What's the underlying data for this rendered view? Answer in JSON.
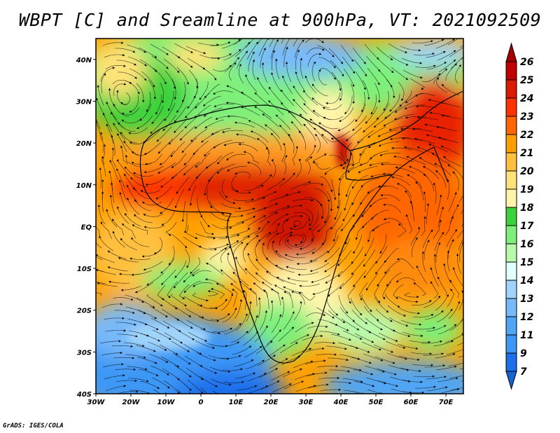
{
  "title": "WBPT [C] and Sreamline at 900hPa, VT: 2021092509",
  "credit": "GrADS: IGES/COLA",
  "map": {
    "lon_range": [
      -30,
      75
    ],
    "lat_range": [
      -40,
      45
    ],
    "lon_labels": [
      {
        "lon": -30,
        "text": "30W"
      },
      {
        "lon": -20,
        "text": "20W"
      },
      {
        "lon": -10,
        "text": "10W"
      },
      {
        "lon": 0,
        "text": "0"
      },
      {
        "lon": 10,
        "text": "10E"
      },
      {
        "lon": 20,
        "text": "20E"
      },
      {
        "lon": 30,
        "text": "30E"
      },
      {
        "lon": 40,
        "text": "40E"
      },
      {
        "lon": 50,
        "text": "50E"
      },
      {
        "lon": 60,
        "text": "60E"
      },
      {
        "lon": 70,
        "text": "70E"
      }
    ],
    "lat_labels": [
      {
        "lat": 40,
        "text": "40N"
      },
      {
        "lat": 30,
        "text": "30N"
      },
      {
        "lat": 20,
        "text": "20N"
      },
      {
        "lat": 10,
        "text": "10N"
      },
      {
        "lat": 0,
        "text": "EQ"
      },
      {
        "lat": -10,
        "text": "10S"
      },
      {
        "lat": -20,
        "text": "20S"
      },
      {
        "lat": -30,
        "text": "30S"
      },
      {
        "lat": -40,
        "text": "40S"
      }
    ]
  },
  "colorbar": {
    "labels": [
      "26",
      "25",
      "24",
      "23",
      "22",
      "21",
      "20",
      "19",
      "18",
      "17",
      "16",
      "15",
      "14",
      "13",
      "12",
      "11",
      "9",
      "7"
    ],
    "top_arrow_color": "#a50000",
    "bottom_arrow_color": "#1464d2",
    "colors": [
      "#c00000",
      "#dc1a00",
      "#ff3300",
      "#ff6600",
      "#ffa000",
      "#ffc040",
      "#ffe278",
      "#fff5aa",
      "#3cd23c",
      "#7ef07a",
      "#b9f9aa",
      "#e1ffff",
      "#9fd3fa",
      "#78b9fa",
      "#50a5f5",
      "#3c97f5",
      "#1e6eeb"
    ]
  }
}
